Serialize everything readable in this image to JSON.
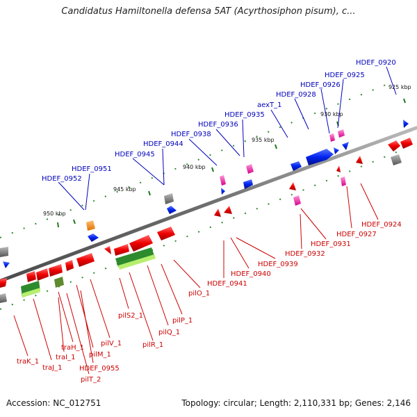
{
  "title": "Candidatus Hamiltonella defensa 5AT (Acyrthosiphon pisum), c...",
  "footer": {
    "accession": "Accession: NC_012751",
    "summary": "Topology: circular; Length: 2,110,331 bp; Genes: 2,146"
  },
  "colors": {
    "forward_label": "#0000bb",
    "reverse_label": "#cc0000",
    "backbone": "#777777"
  },
  "kbp_labels": [
    "925 kbp",
    "930 kbp",
    "935 kbp",
    "940 kbp",
    "945 kbp",
    "950 kbp"
  ],
  "forward_genes": [
    "HDEF_0920",
    "HDEF_0925",
    "HDEF_0926",
    "HDEF_0928",
    "aexT_1",
    "HDEF_0935",
    "HDEF_0936",
    "HDEF_0938",
    "HDEF_0944",
    "HDEF_0945",
    "HDEF_0951",
    "HDEF_0952"
  ],
  "reverse_genes": [
    "HDEF_0924",
    "HDEF_0927",
    "HDEF_0931",
    "HDEF_0932",
    "HDEF_0939",
    "HDEF_0940",
    "HDEF_0941",
    "pilO_1",
    "pilP_1",
    "pilQ_1",
    "pilR_1",
    "pilS2_1",
    "pilV_1",
    "pilM_1",
    "HDEF_0955",
    "traH_1",
    "traI_1",
    "pilT_2",
    "traJ_1",
    "traK_1"
  ]
}
